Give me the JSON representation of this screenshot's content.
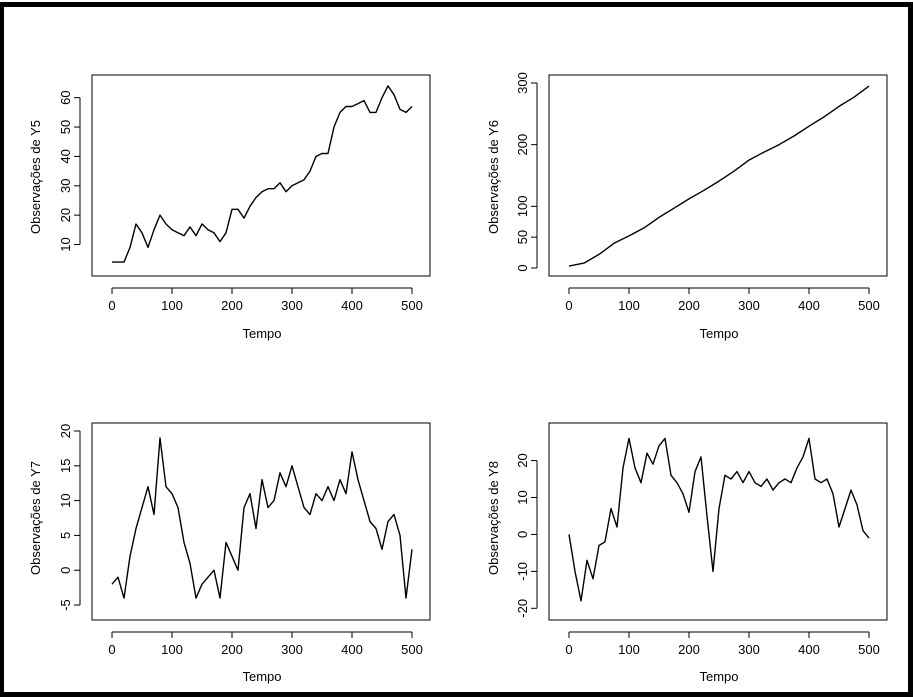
{
  "chart_data": [
    {
      "type": "line",
      "xlabel": "Tempo",
      "ylabel": "Observações de Y5",
      "xlim": [
        0,
        500
      ],
      "ylim": [
        2,
        65
      ],
      "xticks": [
        0,
        100,
        200,
        300,
        400,
        500
      ],
      "yticks": [
        10,
        20,
        30,
        40,
        50,
        60
      ],
      "grid": false,
      "series": [
        {
          "x": [
            0,
            10,
            20,
            30,
            40,
            50,
            60,
            70,
            80,
            90,
            100,
            110,
            120,
            130,
            140,
            150,
            160,
            170,
            180,
            190,
            200,
            210,
            220,
            230,
            240,
            250,
            260,
            270,
            280,
            290,
            300,
            310,
            320,
            330,
            340,
            350,
            360,
            370,
            380,
            390,
            400,
            410,
            420,
            430,
            440,
            450,
            460,
            470,
            480,
            490,
            500
          ],
          "y": [
            4,
            4,
            4,
            9,
            17,
            14,
            9,
            15,
            20,
            17,
            15,
            14,
            13,
            16,
            13,
            17,
            15,
            14,
            11,
            14,
            22,
            22,
            19,
            23,
            26,
            28,
            29,
            29,
            31,
            28,
            30,
            31,
            32,
            35,
            40,
            41,
            41,
            50,
            55,
            57,
            57,
            58,
            59,
            55,
            55,
            60,
            64,
            61,
            56,
            55,
            57
          ]
        }
      ]
    },
    {
      "type": "line",
      "xlabel": "Tempo",
      "ylabel": "Observações de Y6",
      "xlim": [
        0,
        500
      ],
      "ylim": [
        0,
        300
      ],
      "xticks": [
        0,
        100,
        200,
        300,
        400,
        500
      ],
      "yticks": [
        0,
        50,
        100,
        200,
        300
      ],
      "grid": false,
      "series": [
        {
          "x": [
            0,
            25,
            50,
            75,
            100,
            125,
            150,
            175,
            200,
            225,
            250,
            275,
            300,
            325,
            350,
            375,
            400,
            425,
            450,
            475,
            500
          ],
          "y": [
            3,
            8,
            22,
            40,
            52,
            65,
            82,
            97,
            112,
            126,
            141,
            157,
            175,
            188,
            200,
            214,
            230,
            245,
            262,
            277,
            295
          ]
        }
      ]
    },
    {
      "type": "line",
      "xlabel": "Tempo",
      "ylabel": "Observações de Y7",
      "xlim": [
        0,
        500
      ],
      "ylim": [
        -6,
        20
      ],
      "xticks": [
        0,
        100,
        200,
        300,
        400,
        500
      ],
      "yticks": [
        -5,
        0,
        5,
        10,
        15,
        20
      ],
      "grid": false,
      "series": [
        {
          "x": [
            0,
            10,
            20,
            30,
            40,
            50,
            60,
            70,
            80,
            90,
            100,
            110,
            120,
            130,
            140,
            150,
            160,
            170,
            180,
            190,
            200,
            210,
            220,
            230,
            240,
            250,
            260,
            270,
            280,
            290,
            300,
            310,
            320,
            330,
            340,
            350,
            360,
            370,
            380,
            390,
            400,
            410,
            420,
            430,
            440,
            450,
            460,
            470,
            480,
            490,
            500
          ],
          "y": [
            -2,
            -1,
            -4,
            2,
            6,
            9,
            12,
            8,
            19,
            12,
            11,
            9,
            4,
            1,
            -4,
            -2,
            -1,
            0,
            -4,
            4,
            2,
            0,
            9,
            11,
            6,
            13,
            9,
            10,
            14,
            12,
            15,
            12,
            9,
            8,
            11,
            10,
            12,
            10,
            13,
            11,
            17,
            13,
            10,
            7,
            6,
            3,
            7,
            8,
            5,
            -4,
            3
          ]
        }
      ]
    },
    {
      "type": "line",
      "xlabel": "Tempo",
      "ylabel": "Observações de Y8",
      "xlim": [
        0,
        500
      ],
      "ylim": [
        -21,
        28
      ],
      "xticks": [
        0,
        100,
        200,
        300,
        400,
        500
      ],
      "yticks": [
        -20,
        -10,
        0,
        10,
        20
      ],
      "grid": false,
      "series": [
        {
          "x": [
            0,
            10,
            20,
            30,
            40,
            50,
            60,
            70,
            80,
            90,
            100,
            110,
            120,
            130,
            140,
            150,
            160,
            170,
            180,
            190,
            200,
            210,
            220,
            230,
            240,
            250,
            260,
            270,
            280,
            290,
            300,
            310,
            320,
            330,
            340,
            350,
            360,
            370,
            380,
            390,
            400,
            410,
            420,
            430,
            440,
            450,
            460,
            470,
            480,
            490,
            500
          ],
          "y": [
            0,
            -10,
            -18,
            -7,
            -12,
            -3,
            -2,
            7,
            2,
            18,
            26,
            18,
            14,
            22,
            19,
            24,
            26,
            16,
            14,
            11,
            6,
            17,
            21,
            5,
            -10,
            7,
            16,
            15,
            17,
            14,
            17,
            14,
            13,
            15,
            12,
            14,
            15,
            14,
            18,
            21,
            26,
            15,
            14,
            15,
            11,
            2,
            7,
            12,
            8,
            1,
            -1
          ]
        }
      ]
    }
  ]
}
